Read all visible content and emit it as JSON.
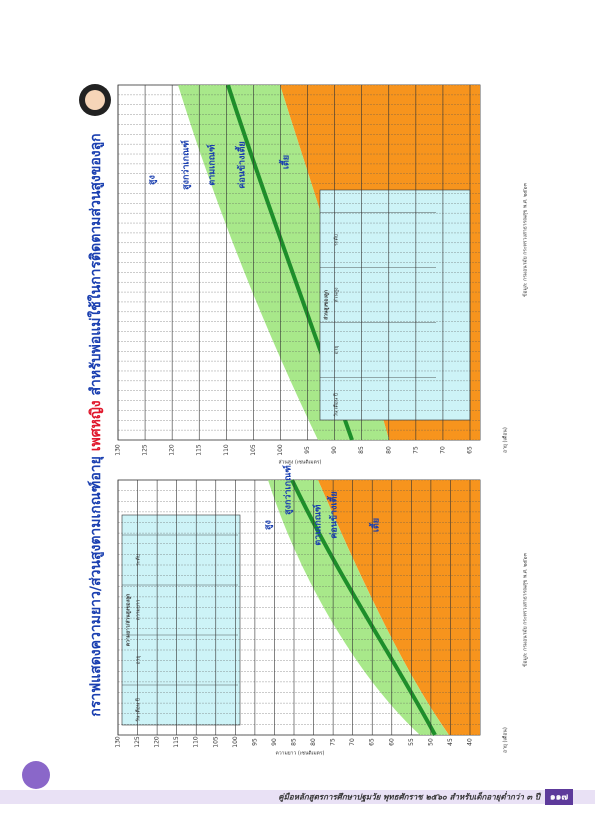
{
  "title": {
    "part1": "กราฟแสดงความยาว/ส่วนสูงตามเกณฑ์อายุ",
    "highlight": "เพศหญิง",
    "part2": "สำหรับพ่อแม่ใช้ในการติดตามส่วนสูงของลูก"
  },
  "lower_chart": {
    "axis_label": "ความยาว (เซนติเมตร)",
    "age_label": "อายุ (เดือน)",
    "ticks": [
      130,
      125,
      120,
      115,
      110,
      105,
      100,
      95,
      90,
      85,
      80,
      75,
      70,
      65,
      60,
      55,
      50,
      45,
      40
    ],
    "zones": [
      "สูง",
      "สูงกว่าเกณฑ์",
      "ตามเกณฑ์",
      "ค่อนข้างเตี้ย",
      "เตี้ย"
    ],
    "table_title": "ความยาว/ส่วนสูงของลูก",
    "table_headers": [
      "วัน เดือน ปี",
      "อายุ",
      "ความยาว",
      "ระดับ"
    ],
    "source": "ข้อมูล: กรมอนามัย กระทรวงสาธารณสุข พ.ศ. ๒๕๖๓"
  },
  "upper_chart": {
    "axis_label": "ส่วนสูง (เซนติเมตร)",
    "age_label": "อายุ (เดือน)",
    "ticks": [
      130,
      125,
      120,
      115,
      110,
      105,
      100,
      95,
      90,
      85,
      80,
      75,
      70,
      65
    ],
    "zones": [
      "สูง",
      "สูงกว่าเกณฑ์",
      "ตามเกณฑ์",
      "ค่อนข้างเตี้ย",
      "เตี้ย"
    ],
    "table_title": "ส่วนสูงของลูก",
    "table_headers": [
      "วัน เดือน ปี",
      "อายุ",
      "ส่วนสูง",
      "ระดับ"
    ],
    "source": "ข้อมูล: กรมอนามัย กระทรวงสาธารณสุข พ.ศ. ๒๕๖๓"
  },
  "footer": {
    "text": "คู่มือหลักสูตรการศึกษาปฐมวัย พุทธศักราช ๒๕๖๐ สำหรับเด็กอายุต่ำกว่า ๓ ปี",
    "page": "๑๑๗"
  }
}
